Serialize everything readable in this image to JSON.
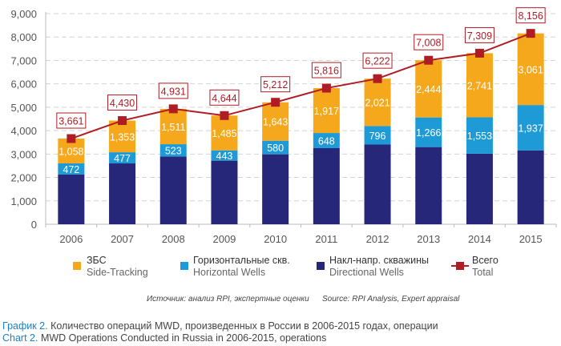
{
  "chart_data": {
    "type": "bar",
    "stacked": true,
    "title": "",
    "xlabel": "",
    "ylabel": "",
    "ylim": [
      0,
      9000
    ],
    "yticks": [
      0,
      1000,
      2000,
      3000,
      4000,
      5000,
      6000,
      7000,
      8000,
      9000
    ],
    "ytick_labels": [
      "0",
      "1,000",
      "2,000",
      "3,000",
      "4,000",
      "5,000",
      "6,000",
      "7,000",
      "8,000",
      "9,000"
    ],
    "grid": "horizontal-dashed",
    "categories": [
      "2006",
      "2007",
      "2008",
      "2009",
      "2010",
      "2011",
      "2012",
      "2013",
      "2014",
      "2015"
    ],
    "series": [
      {
        "name": "Накл-напр. скважины / Directional Wells",
        "key": "directional",
        "color": "#27277a",
        "labeled": false,
        "values": [
          2131,
          2600,
          2897,
          2716,
          2989,
          3251,
          3405,
          3298,
          3015,
          3158
        ]
      },
      {
        "name": "Горизонтальные скв. / Horizontal Wells",
        "key": "horizontal",
        "color": "#1e9bd7",
        "labeled": true,
        "values": [
          472,
          477,
          523,
          443,
          580,
          648,
          796,
          1266,
          1553,
          1937
        ],
        "labels": [
          "472",
          "477",
          "523",
          "443",
          "580",
          "648",
          "796",
          "1,266",
          "1,553",
          "1,937"
        ]
      },
      {
        "name": "ЗБС / Side-Tracking",
        "key": "sidetracking",
        "color": "#f6a81c",
        "labeled": true,
        "values": [
          1058,
          1353,
          1511,
          1485,
          1643,
          1917,
          2021,
          2444,
          2741,
          3061
        ],
        "labels": [
          "1,058",
          "1,353",
          "1,511",
          "1,485",
          "1,643",
          "1,917",
          "2,021",
          "2,444",
          "2,741",
          "3,061"
        ]
      }
    ],
    "line_series": {
      "name": "Всего / Total",
      "color": "#b01c24",
      "values": [
        3661,
        4430,
        4931,
        4644,
        5212,
        5816,
        6222,
        7008,
        7309,
        8156
      ],
      "labels": [
        "3,661",
        "4,430",
        "4,931",
        "4,644",
        "5,212",
        "5,816",
        "6,222",
        "7,008",
        "7,309",
        "8,156"
      ]
    },
    "legend_position": "bottom"
  },
  "legend": [
    {
      "ru": "ЗБС",
      "en": "Side-Tracking",
      "color": "#f6a81c",
      "type": "square"
    },
    {
      "ru": "Горизонтальные скв.",
      "en": "Horizontal Wells",
      "color": "#1e9bd7",
      "type": "square"
    },
    {
      "ru": "Накл-напр. скважины",
      "en": "Directional Wells",
      "color": "#27277a",
      "type": "square"
    },
    {
      "ru": "Всего",
      "en": "Total",
      "color": "#b01c24",
      "type": "line-marker"
    }
  ],
  "source": {
    "ru": "Источник: анализ RPI, экспертные оценки",
    "en": "Source: RPI Analysis, Expert appraisal"
  },
  "caption": {
    "ru_lead": "График 2.",
    "ru_text": " Количество операций MWD, произведенных в России в 2006-2015 годах, операции",
    "en_lead": "Chart 2.",
    "en_text": " MWD Operations Conducted in Russia in 2006-2015, operations"
  }
}
